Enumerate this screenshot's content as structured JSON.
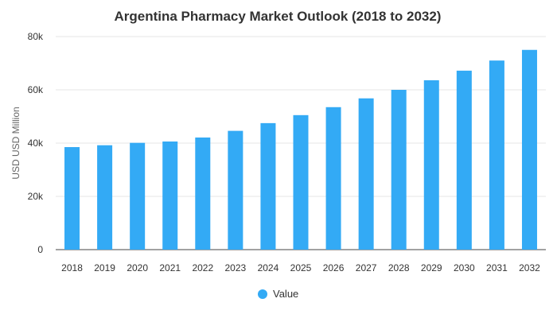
{
  "chart_data": {
    "type": "bar",
    "title": "Argentina Pharmacy Market Outlook (2018 to 2032)",
    "xlabel": "",
    "ylabel": "USD USD Million",
    "categories": [
      "2018",
      "2019",
      "2020",
      "2021",
      "2022",
      "2023",
      "2024",
      "2025",
      "2026",
      "2027",
      "2028",
      "2029",
      "2030",
      "2031",
      "2032"
    ],
    "series": [
      {
        "name": "Value",
        "values": [
          38500,
          39200,
          40100,
          40600,
          42100,
          44600,
          47500,
          50500,
          53500,
          56800,
          60000,
          63600,
          67200,
          71000,
          75000
        ]
      }
    ],
    "ylim": [
      0,
      80000
    ],
    "yticks": [
      0,
      20000,
      40000,
      60000,
      80000
    ],
    "ytick_labels": [
      "0",
      "20k",
      "40k",
      "60k",
      "80k"
    ],
    "grid": "horizontal",
    "legend_position": "bottom-center",
    "colors": {
      "bar": "#33aaf5",
      "grid": "#e6e6e6",
      "text": "#333333",
      "axis": "#444444"
    }
  }
}
